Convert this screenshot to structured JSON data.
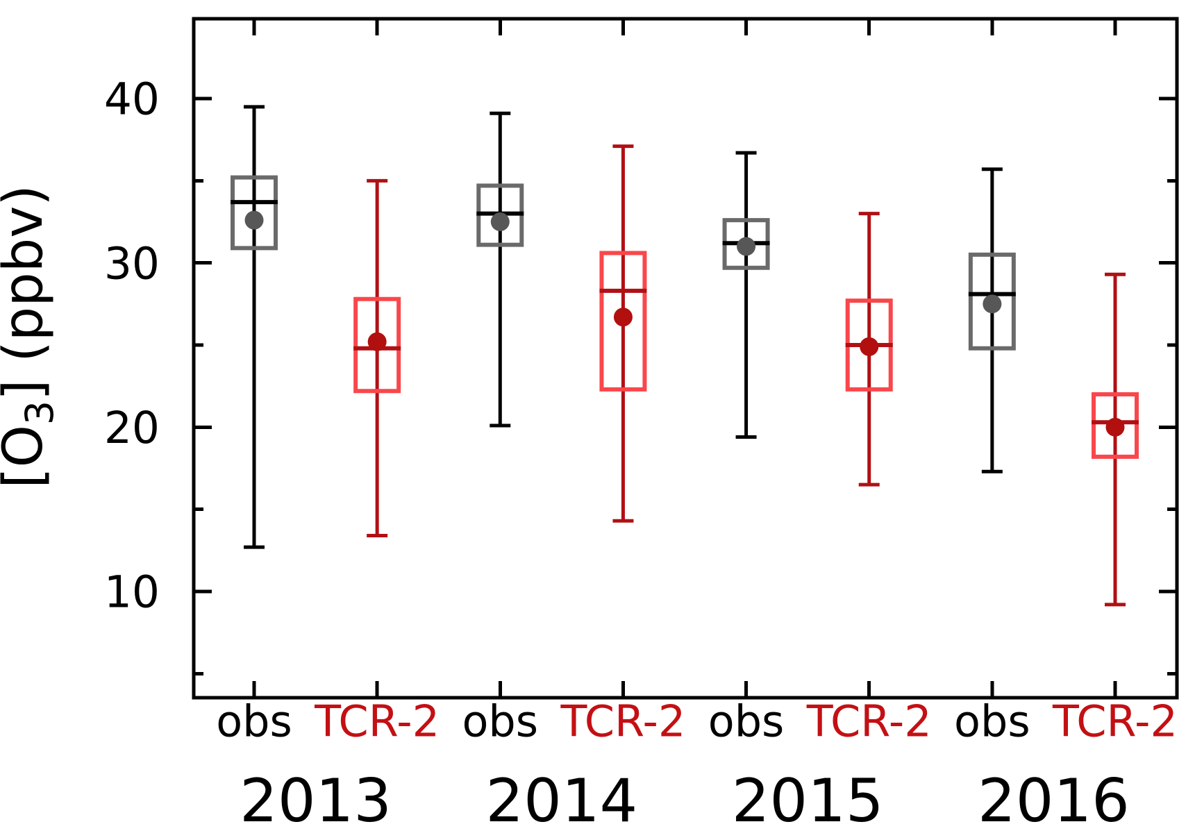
{
  "chart_data": {
    "type": "box",
    "title": "",
    "ylabel": "[O3] (ppbv)",
    "ylabel_parts": {
      "prefix": "[O",
      "subscript": "3",
      "suffix": "] (ppbv)"
    },
    "xlabel": "",
    "ylim": [
      3.5,
      44.9
    ],
    "y_major_ticks": [
      40,
      30,
      20,
      10
    ],
    "y_minor_ticks": [
      35,
      25,
      15,
      5
    ],
    "grid": false,
    "legend": "none",
    "unit": "ppbv",
    "years": [
      "2013",
      "2014",
      "2015",
      "2016"
    ],
    "series_labels": {
      "obs": "obs",
      "model": "TCR-2"
    },
    "boxes": [
      {
        "year": "2013",
        "label": "obs",
        "variant": "obs",
        "whisker_low": 12.7,
        "q1": 30.9,
        "median": 33.7,
        "mean": 32.6,
        "q3": 35.2,
        "whisker_high": 39.5
      },
      {
        "year": "2013",
        "label": "TCR-2",
        "variant": "model",
        "whisker_low": 13.4,
        "q1": 22.2,
        "median": 24.8,
        "mean": 25.2,
        "q3": 27.8,
        "whisker_high": 35.0
      },
      {
        "year": "2014",
        "label": "obs",
        "variant": "obs",
        "whisker_low": 20.1,
        "q1": 31.1,
        "median": 33.0,
        "mean": 32.5,
        "q3": 34.7,
        "whisker_high": 39.1
      },
      {
        "year": "2014",
        "label": "TCR-2",
        "variant": "model",
        "whisker_low": 14.3,
        "q1": 22.3,
        "median": 28.3,
        "mean": 26.7,
        "q3": 30.6,
        "whisker_high": 37.1
      },
      {
        "year": "2015",
        "label": "obs",
        "variant": "obs",
        "whisker_low": 19.4,
        "q1": 29.7,
        "median": 31.2,
        "mean": 31.0,
        "q3": 32.6,
        "whisker_high": 36.7
      },
      {
        "year": "2015",
        "label": "TCR-2",
        "variant": "model",
        "whisker_low": 16.5,
        "q1": 22.3,
        "median": 25.0,
        "mean": 24.9,
        "q3": 27.7,
        "whisker_high": 33.0
      },
      {
        "year": "2016",
        "label": "obs",
        "variant": "obs",
        "whisker_low": 17.3,
        "q1": 24.8,
        "median": 28.1,
        "mean": 27.5,
        "q3": 30.5,
        "whisker_high": 35.7
      },
      {
        "year": "2016",
        "label": "TCR-2",
        "variant": "model",
        "whisker_low": 9.2,
        "q1": 18.2,
        "median": 20.3,
        "mean": 20.0,
        "q3": 22.0,
        "whisker_high": 29.3
      }
    ],
    "colors": {
      "axis": "#000000",
      "obs_box": "#6a6a6a",
      "obs_whisker": "#000000",
      "obs_median": "#000000",
      "obs_mean_dot": "#575757",
      "obs_label": "#000000",
      "model_box": "#f9474b",
      "model_whisker": "#b01014",
      "model_median": "#b01014",
      "model_mean_dot": "#b20f0f",
      "model_label": "#c31014"
    }
  }
}
